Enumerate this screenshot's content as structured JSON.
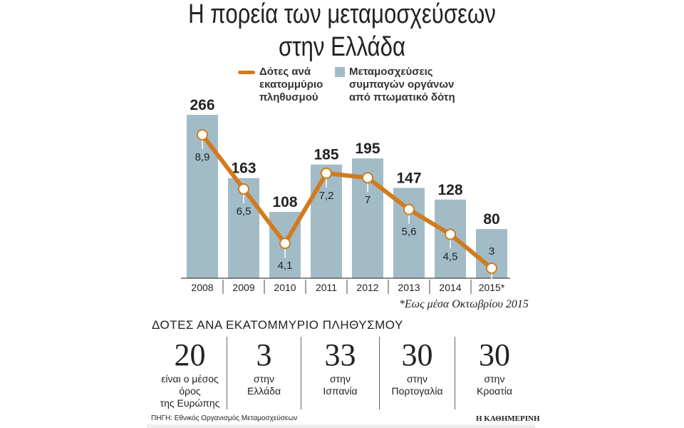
{
  "title": [
    "Η πορεία των μεταμοσχεύσεων",
    "στην Ελλάδα"
  ],
  "chart_data": {
    "type": "bar+line",
    "categories": [
      "2008",
      "2009",
      "2010",
      "2011",
      "2012",
      "2013",
      "2014",
      "2015*"
    ],
    "series": [
      {
        "name": "Μεταμοσχεύσεις συμπαγών οργάνων από πτωματικό δότη",
        "type": "bar",
        "color": "#a2bcc7",
        "values": [
          266,
          163,
          108,
          185,
          195,
          147,
          128,
          80
        ],
        "labels": [
          "266",
          "163",
          "108",
          "185",
          "195",
          "147",
          "128",
          "80"
        ]
      },
      {
        "name": "Δότες ανά εκατομμύριο πληθυσμού",
        "type": "line",
        "color": "#d17b1f",
        "values": [
          8.9,
          6.5,
          4.1,
          7.2,
          7,
          5.6,
          4.5,
          3
        ],
        "labels": [
          "8,9",
          "6,5",
          "4,1",
          "7,2",
          "7",
          "5,6",
          "4,5",
          "3"
        ]
      }
    ],
    "legend_placement": "top",
    "note": "*Εως μέσα Οκτωβρίου 2015"
  },
  "legend": {
    "line": [
      "Δότες ανά",
      "εκατομμύριο",
      "πληθυσμού"
    ],
    "bar": [
      "Μεταμοσχεύσεις",
      "συμπαγών οργάνων",
      "από πτωματικό δότη"
    ]
  },
  "subtitle": "ΔΟΤΕΣ ΑΝΑ ΕΚΑΤΟΜΜΥΡΙΟ ΠΛΗΘΥΣΜΟΥ",
  "stats": [
    {
      "value": "20",
      "text": [
        "είναι ο μέσος",
        "όρος",
        "της Ευρώπης"
      ]
    },
    {
      "value": "3",
      "text": [
        "στην",
        "Ελλάδα"
      ]
    },
    {
      "value": "33",
      "text": [
        "στην",
        "Ισπανία"
      ]
    },
    {
      "value": "30",
      "text": [
        "στην",
        "Πορτογαλία"
      ]
    },
    {
      "value": "30",
      "text": [
        "στην",
        "Κροατία"
      ]
    }
  ],
  "source": "ΠΗΓΗ: Εθνικός Οργανισμός Μεταμοσχεύσεων",
  "logo": "Η ΚΑΘΗΜΕΡΙΝΗ"
}
